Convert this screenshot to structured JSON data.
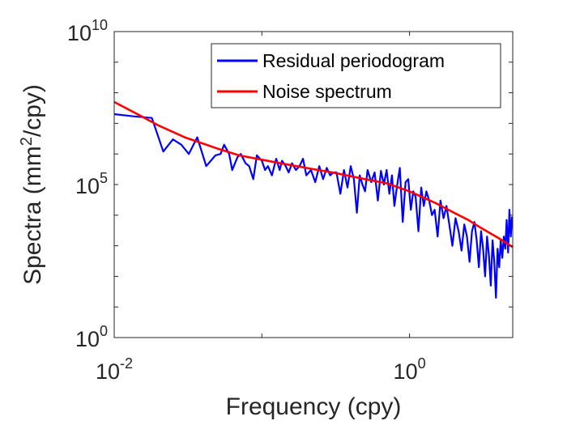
{
  "chart_data": {
    "type": "line",
    "xlabel": "Frequency (cpy)",
    "ylabel": {
      "prefix": "Spectra (mm",
      "sup": "2",
      "suffix": "/cpy)"
    },
    "x_scale": "log",
    "y_scale": "log",
    "xlim": [
      0.01,
      5
    ],
    "ylim": [
      1,
      10000000000
    ],
    "grid": false,
    "legend_placement": "top-right",
    "x_ticks": [
      {
        "base": "10",
        "exp": "-2",
        "value": 0.01
      },
      {
        "base": "10",
        "exp": "0",
        "value": 1
      }
    ],
    "y_ticks": [
      {
        "base": "10",
        "exp": "0",
        "value": 1
      },
      {
        "base": "10",
        "exp": "5",
        "value": 100000
      },
      {
        "base": "10",
        "exp": "10",
        "value": 10000000000
      }
    ],
    "series": [
      {
        "name": "Residual periodogram",
        "color": "#0000ff",
        "x": [
          0.01,
          0.0135,
          0.018,
          0.0215,
          0.025,
          0.0285,
          0.032,
          0.0365,
          0.042,
          0.0485,
          0.0525,
          0.0555,
          0.06,
          0.063,
          0.0685,
          0.072,
          0.0775,
          0.082,
          0.0875,
          0.0925,
          0.1,
          0.105,
          0.11,
          0.117,
          0.125,
          0.132,
          0.137,
          0.145,
          0.152,
          0.16,
          0.17,
          0.18,
          0.19,
          0.2,
          0.215,
          0.23,
          0.245,
          0.26,
          0.275,
          0.29,
          0.305,
          0.32,
          0.34,
          0.36,
          0.38,
          0.4,
          0.42,
          0.44,
          0.46,
          0.48,
          0.5,
          0.52,
          0.55,
          0.58,
          0.61,
          0.64,
          0.67,
          0.7,
          0.73,
          0.76,
          0.79,
          0.82,
          0.86,
          0.9,
          0.94,
          0.98,
          1.02,
          1.06,
          1.1,
          1.15,
          1.2,
          1.25,
          1.3,
          1.36,
          1.42,
          1.48,
          1.55,
          1.62,
          1.7,
          1.78,
          1.86,
          1.95,
          2.05,
          2.15,
          2.25,
          2.35,
          2.45,
          2.55,
          2.65,
          2.75,
          2.85,
          2.95,
          3.05,
          3.15,
          3.25,
          3.35,
          3.45,
          3.55,
          3.65,
          3.75,
          3.85,
          3.95,
          4.05,
          4.15,
          4.25,
          4.35,
          4.45,
          4.55,
          4.65,
          4.75,
          4.85,
          4.95
        ],
        "y": [
          20000000,
          17000000,
          15000000,
          1200000,
          3000000,
          2000000,
          1000000,
          3500000,
          400000,
          900000,
          1000000,
          2000000,
          1000000,
          300000,
          800000,
          1000000,
          500000,
          400000,
          150000,
          900000,
          600000,
          300000,
          400000,
          200000,
          700000,
          300000,
          600000,
          400000,
          250000,
          500000,
          300000,
          400000,
          700000,
          200000,
          300000,
          120000,
          400000,
          150000,
          350000,
          200000,
          250000,
          250000,
          50000,
          300000,
          80000,
          400000,
          150000,
          12000,
          200000,
          100000,
          60000,
          300000,
          120000,
          250000,
          30000,
          280000,
          100000,
          300000,
          50000,
          200000,
          20000,
          80000,
          350000,
          6000,
          120000,
          150000,
          15000,
          60000,
          40000,
          3000,
          80000,
          20000,
          60000,
          30000,
          10000,
          15000,
          2000,
          30000,
          8000,
          20000,
          5000,
          1000,
          8000,
          3000,
          700,
          5000,
          2000,
          300,
          3000,
          6000,
          1500,
          200,
          3000,
          800,
          100,
          2000,
          500,
          50,
          1500,
          300,
          20,
          800,
          200,
          1500,
          400,
          2000,
          800,
          7000,
          600,
          15000,
          2000,
          9000
        ]
      },
      {
        "name": "Noise spectrum",
        "color": "#ff0000",
        "x": [
          0.01,
          0.015,
          0.02,
          0.03,
          0.05,
          0.07,
          0.1,
          0.15,
          0.2,
          0.3,
          0.5,
          0.7,
          1.0,
          1.5,
          2.0,
          2.5,
          3.0,
          4.0,
          5.0
        ],
        "y": [
          50000000,
          18000000,
          8500000,
          3500000,
          1500000,
          900000,
          650000,
          450000,
          350000,
          250000,
          150000,
          110000,
          60000,
          25000,
          12000,
          7000,
          4000,
          1800,
          900
        ]
      }
    ]
  }
}
